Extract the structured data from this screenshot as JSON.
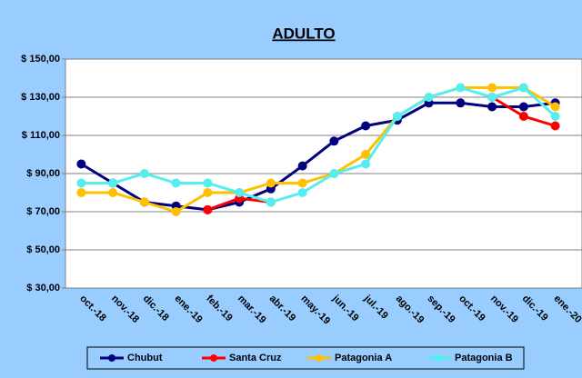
{
  "chart_data": {
    "type": "line",
    "title": "ADULTO",
    "categories": [
      "oct.-18",
      "nov.-18",
      "dic.-18",
      "ene.-19",
      "feb.-19",
      "mar.-19",
      "abr.-19",
      "may.-19",
      "jun.-19",
      "jul.-19",
      "ago.-19",
      "sep.-19",
      "oct.-19",
      "nov.-19",
      "dic.-19",
      "ene.-20"
    ],
    "series": [
      {
        "name": "Chubut",
        "color": "#000080",
        "values": [
          95,
          85,
          75,
          73,
          71,
          75,
          82,
          94,
          107,
          115,
          118,
          127,
          127,
          125,
          125,
          127
        ]
      },
      {
        "name": "Santa Cruz",
        "color": "#ff0000",
        "values": [
          null,
          null,
          null,
          null,
          71,
          77,
          75,
          null,
          null,
          null,
          null,
          null,
          null,
          130,
          120,
          115
        ]
      },
      {
        "name": "Patagonia A",
        "color": "#ffc000",
        "values": [
          80,
          80,
          75,
          70,
          80,
          80,
          85,
          85,
          90,
          100,
          120,
          130,
          135,
          135,
          135,
          125
        ]
      },
      {
        "name": "Patagonia B",
        "color": "#55eeee",
        "values": [
          85,
          85,
          90,
          85,
          85,
          80,
          75,
          80,
          90,
          95,
          120,
          130,
          135,
          130,
          135,
          120
        ]
      }
    ],
    "ylim": [
      30,
      150
    ],
    "yticks": [
      {
        "value": 30,
        "label": "$ 30,00"
      },
      {
        "value": 50,
        "label": "$ 50,00"
      },
      {
        "value": 70,
        "label": "$ 70,00"
      },
      {
        "value": 90,
        "label": "$ 90,00"
      },
      {
        "value": 110,
        "label": "$ 110,00"
      },
      {
        "value": 130,
        "label": "$ 130,00"
      },
      {
        "value": 150,
        "label": "$ 150,00"
      }
    ],
    "grid": true,
    "legend": "bottom"
  }
}
